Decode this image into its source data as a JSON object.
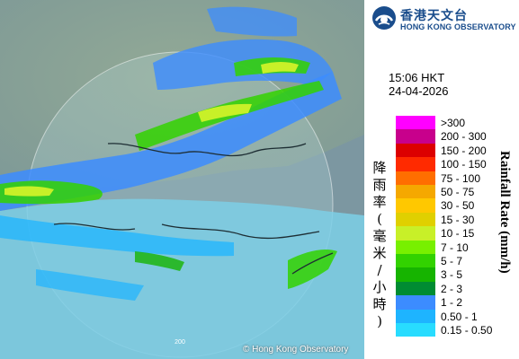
{
  "logo": {
    "zh": "香港天文台",
    "en": "HONG KONG OBSERVATORY",
    "emblem_icon": "hko-emblem-icon"
  },
  "time": "15:06 HKT",
  "date": "24-04-2026",
  "legend": {
    "title_zh": "降雨率(毫米/小時)",
    "title_en": "Rainfall Rate (mm/h)",
    "items": [
      {
        "label": ">300",
        "color": "#ff00ff"
      },
      {
        "label": "200 - 300",
        "color": "#c8008c"
      },
      {
        "label": "150 - 200",
        "color": "#dc0000"
      },
      {
        "label": "100 - 150",
        "color": "#ff2a00"
      },
      {
        "label": "75 - 100",
        "color": "#ff6e00"
      },
      {
        "label": "50 - 75",
        "color": "#f5a800"
      },
      {
        "label": "30 - 50",
        "color": "#ffc800"
      },
      {
        "label": "15 - 30",
        "color": "#e0d000"
      },
      {
        "label": "10 - 15",
        "color": "#c8f028"
      },
      {
        "label": "7 - 10",
        "color": "#78f000"
      },
      {
        "label": "5 - 7",
        "color": "#32d200"
      },
      {
        "label": "3 - 5",
        "color": "#16b400"
      },
      {
        "label": "2 - 3",
        "color": "#008c32"
      },
      {
        "label": "1 - 2",
        "color": "#3c8cff"
      },
      {
        "label": "0.50 - 1",
        "color": "#1eb4ff"
      },
      {
        "label": "0.15 - 0.50",
        "color": "#28dcff"
      }
    ]
  },
  "map": {
    "range_ring_label": "200",
    "copyright": "© Hong Kong Observatory"
  }
}
